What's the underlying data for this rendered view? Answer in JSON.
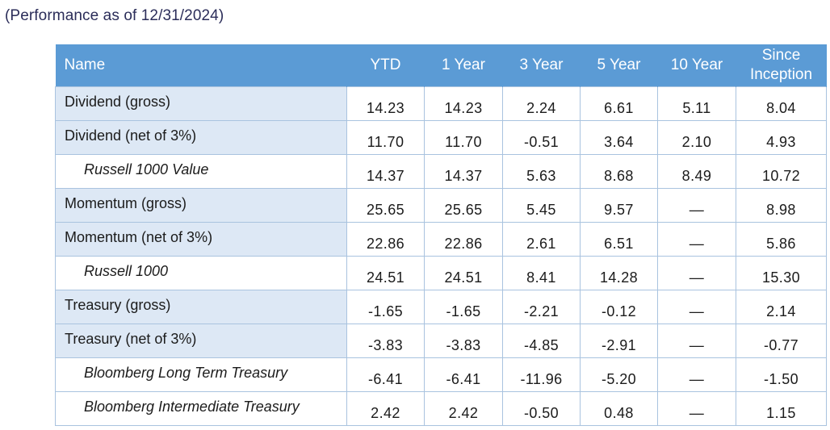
{
  "subtitle": "(Performance as of 12/31/2024)",
  "table": {
    "headers": [
      "Name",
      "YTD",
      "1 Year",
      "3 Year",
      "5 Year",
      "10 Year",
      "Since Inception"
    ],
    "rows": [
      {
        "name": "Dividend (gross)",
        "benchmark": false,
        "values": [
          "14.23",
          "14.23",
          "2.24",
          "6.61",
          "5.11",
          "8.04"
        ]
      },
      {
        "name": "Dividend (net of 3%)",
        "benchmark": false,
        "values": [
          "11.70",
          "11.70",
          "-0.51",
          "3.64",
          "2.10",
          "4.93"
        ]
      },
      {
        "name": "Russell 1000 Value",
        "benchmark": true,
        "values": [
          "14.37",
          "14.37",
          "5.63",
          "8.68",
          "8.49",
          "10.72"
        ]
      },
      {
        "name": "Momentum (gross)",
        "benchmark": false,
        "values": [
          "25.65",
          "25.65",
          "5.45",
          "9.57",
          "—",
          "8.98"
        ]
      },
      {
        "name": "Momentum (net of 3%)",
        "benchmark": false,
        "values": [
          "22.86",
          "22.86",
          "2.61",
          "6.51",
          "—",
          "5.86"
        ]
      },
      {
        "name": "Russell 1000",
        "benchmark": true,
        "values": [
          "24.51",
          "24.51",
          "8.41",
          "14.28",
          "—",
          "15.30"
        ]
      },
      {
        "name": "Treasury (gross)",
        "benchmark": false,
        "values": [
          "-1.65",
          "-1.65",
          "-2.21",
          "-0.12",
          "—",
          "2.14"
        ]
      },
      {
        "name": "Treasury (net of 3%)",
        "benchmark": false,
        "values": [
          "-3.83",
          "-3.83",
          "-4.85",
          "-2.91",
          "—",
          "-0.77"
        ]
      },
      {
        "name": "Bloomberg Long Term Treasury",
        "benchmark": true,
        "values": [
          "-6.41",
          "-6.41",
          "-11.96",
          "-5.20",
          "—",
          "-1.50"
        ]
      },
      {
        "name": "Bloomberg Intermediate Treasury",
        "benchmark": true,
        "values": [
          "2.42",
          "2.42",
          "-0.50",
          "0.48",
          "—",
          "1.15"
        ]
      }
    ]
  },
  "colors": {
    "header_bg": "#5b9bd5",
    "row_shade": "#dde8f5",
    "border": "#a9c3df",
    "subtitle": "#2b2d59"
  }
}
